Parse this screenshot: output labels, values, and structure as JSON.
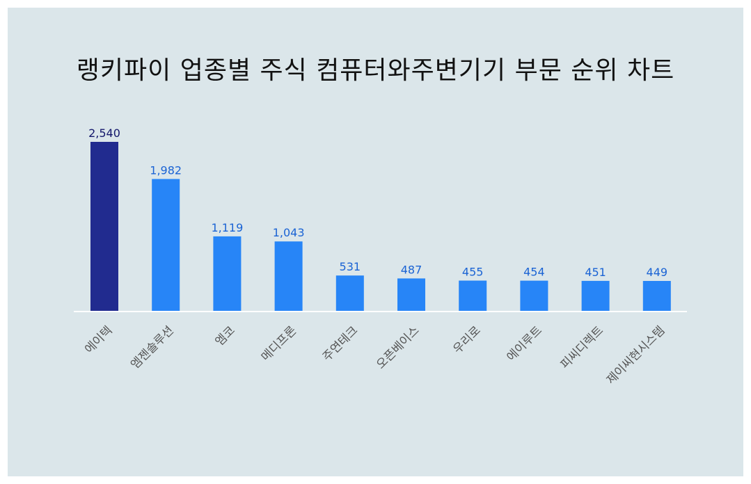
{
  "chart_data": {
    "type": "bar",
    "title": "랭키파이 업종별 주식 컴퓨터와주변기기 부문 순위 차트",
    "categories": [
      "에이텍",
      "엠젠솔루션",
      "엠코",
      "메디프론",
      "주연테크",
      "오픈베이스",
      "우리로",
      "에이루트",
      "피씨디렉트",
      "제이씨현시스템"
    ],
    "values": [
      2540,
      1982,
      1119,
      1043,
      531,
      487,
      455,
      454,
      451,
      449
    ],
    "value_labels": [
      "2,540",
      "1,982",
      "1,119",
      "1,043",
      "531",
      "487",
      "455",
      "454",
      "451",
      "449"
    ],
    "ylim": [
      0,
      2540
    ],
    "grid": false,
    "legend": "none",
    "colors": {
      "highlight_bar": "#212b8f",
      "bar": "#2785f7",
      "highlight_label": "#13176b",
      "label": "#1a63d4",
      "category_label": "#555555",
      "baseline": "#ffffff",
      "background": "#dbe6ea"
    }
  }
}
